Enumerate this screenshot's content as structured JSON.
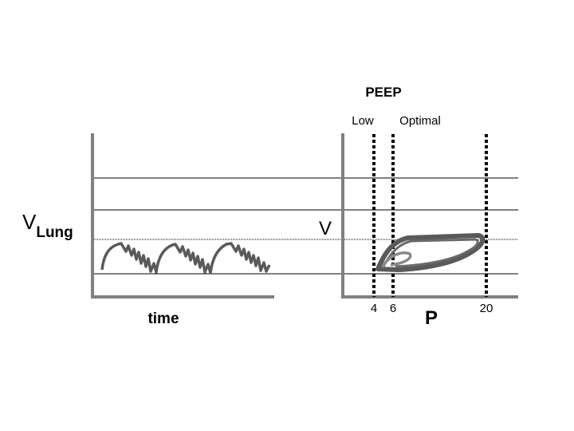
{
  "header": {
    "title": "PEEP",
    "low": "Low",
    "optimal": "Optimal"
  },
  "left_panel": {
    "ylabel_main": "V",
    "ylabel_sub": "Lung",
    "xlabel": "time"
  },
  "right_panel": {
    "ylabel": "V",
    "xlabel": "P",
    "ticks": [
      "4",
      "6",
      "20"
    ]
  },
  "colors": {
    "axis": "#808080",
    "curve": "#5a5a5a",
    "curve_light": "#8a8a8a",
    "gridline": "#000000"
  }
}
